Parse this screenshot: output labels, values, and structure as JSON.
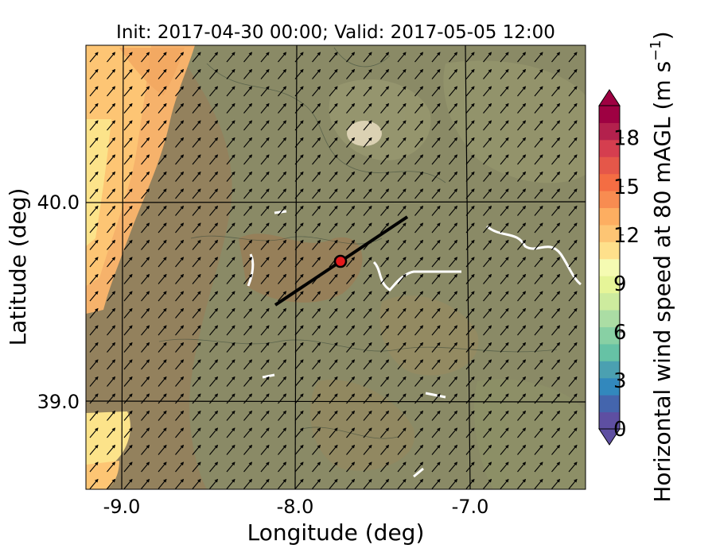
{
  "map": {
    "title": "Init: 2017-04-30 00:00; Valid: 2017-05-05 12:00",
    "xlabel": "Longitude (deg)",
    "ylabel": "Latitude (deg)",
    "xlim": [
      -9.23,
      -6.37
    ],
    "ylim": [
      38.55,
      40.8
    ],
    "x_ticks": [
      "-9.0",
      "-8.0",
      "-7.0"
    ],
    "y_ticks": [
      "40.0",
      "39.0"
    ],
    "gridlines": true,
    "wind_vector_direction": "northeast",
    "transect_line": {
      "start": [
        -8.12,
        39.47
      ],
      "end": [
        -7.37,
        39.93
      ]
    },
    "site_marker": {
      "lon": -7.75,
      "lat": 39.69,
      "color": "#e41a1c"
    },
    "coastal_high_wind_band": "west"
  },
  "colorbar": {
    "label": "Horizontal wind speed at 80 mAGL (m s",
    "label_exponent": "−1",
    "label_close": ")",
    "ticks": [
      "0",
      "3",
      "6",
      "9",
      "12",
      "15",
      "18"
    ],
    "range": [
      0,
      20
    ],
    "extend": "both",
    "colors": [
      "#5e4fa2",
      "#4465ad",
      "#3288bd",
      "#4ba0b1",
      "#66c2a5",
      "#88d0a4",
      "#abdda4",
      "#cdeb9e",
      "#e6f598",
      "#f5fbb2",
      "#fee08b",
      "#fdc574",
      "#fdae61",
      "#f88c51",
      "#f46d43",
      "#e55749",
      "#d53e4f",
      "#b3214d",
      "#9e0142"
    ]
  }
}
